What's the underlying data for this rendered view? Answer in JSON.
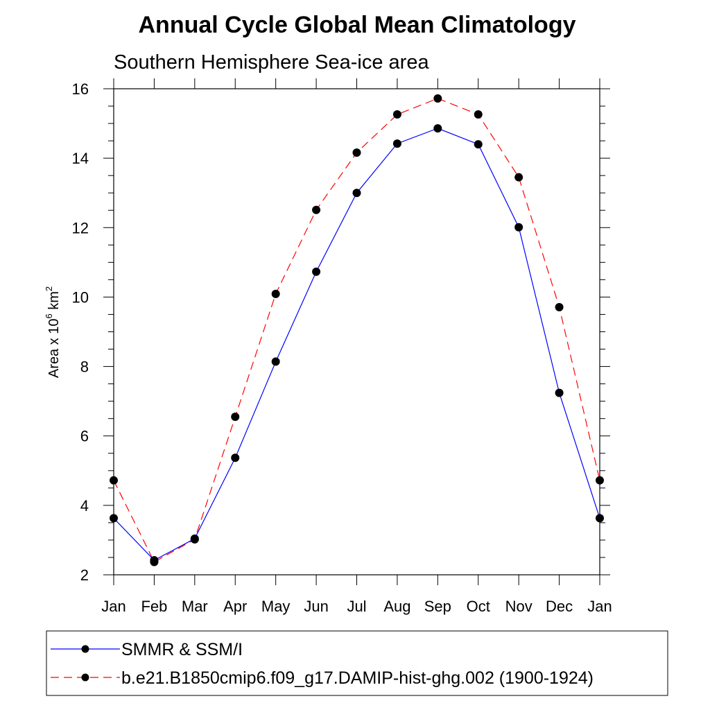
{
  "chart_data": {
    "type": "line",
    "title": "Annual Cycle Global Mean Climatology",
    "subtitle": "Southern Hemisphere Sea-ice area",
    "ylabel": {
      "prefix": "Area x 10",
      "exp": "6",
      "mid": " km",
      "exp2": "2"
    },
    "categories": [
      "Jan",
      "Feb",
      "Mar",
      "Apr",
      "May",
      "Jun",
      "Jul",
      "Aug",
      "Sep",
      "Oct",
      "Nov",
      "Dec",
      "Jan"
    ],
    "ylim": [
      2,
      16
    ],
    "yticks": [
      2,
      4,
      6,
      8,
      10,
      12,
      14,
      16
    ],
    "series": [
      {
        "name": "SMMR & SSM/I",
        "color": "#0000ff",
        "dash": "solid",
        "values": [
          3.63,
          2.42,
          3.04,
          5.37,
          8.14,
          10.73,
          13.0,
          14.42,
          14.86,
          14.4,
          12.01,
          7.24,
          3.63
        ]
      },
      {
        "name": "b.e21.B1850cmip6.f09_g17.DAMIP-hist-ghg.002 (1900-1924)",
        "color": "#ff0000",
        "dash": "dashed",
        "values": [
          4.72,
          2.37,
          3.02,
          6.55,
          10.09,
          12.51,
          14.16,
          15.26,
          15.72,
          15.26,
          13.45,
          9.71,
          4.72
        ]
      }
    ],
    "legend_position": "bottom"
  }
}
